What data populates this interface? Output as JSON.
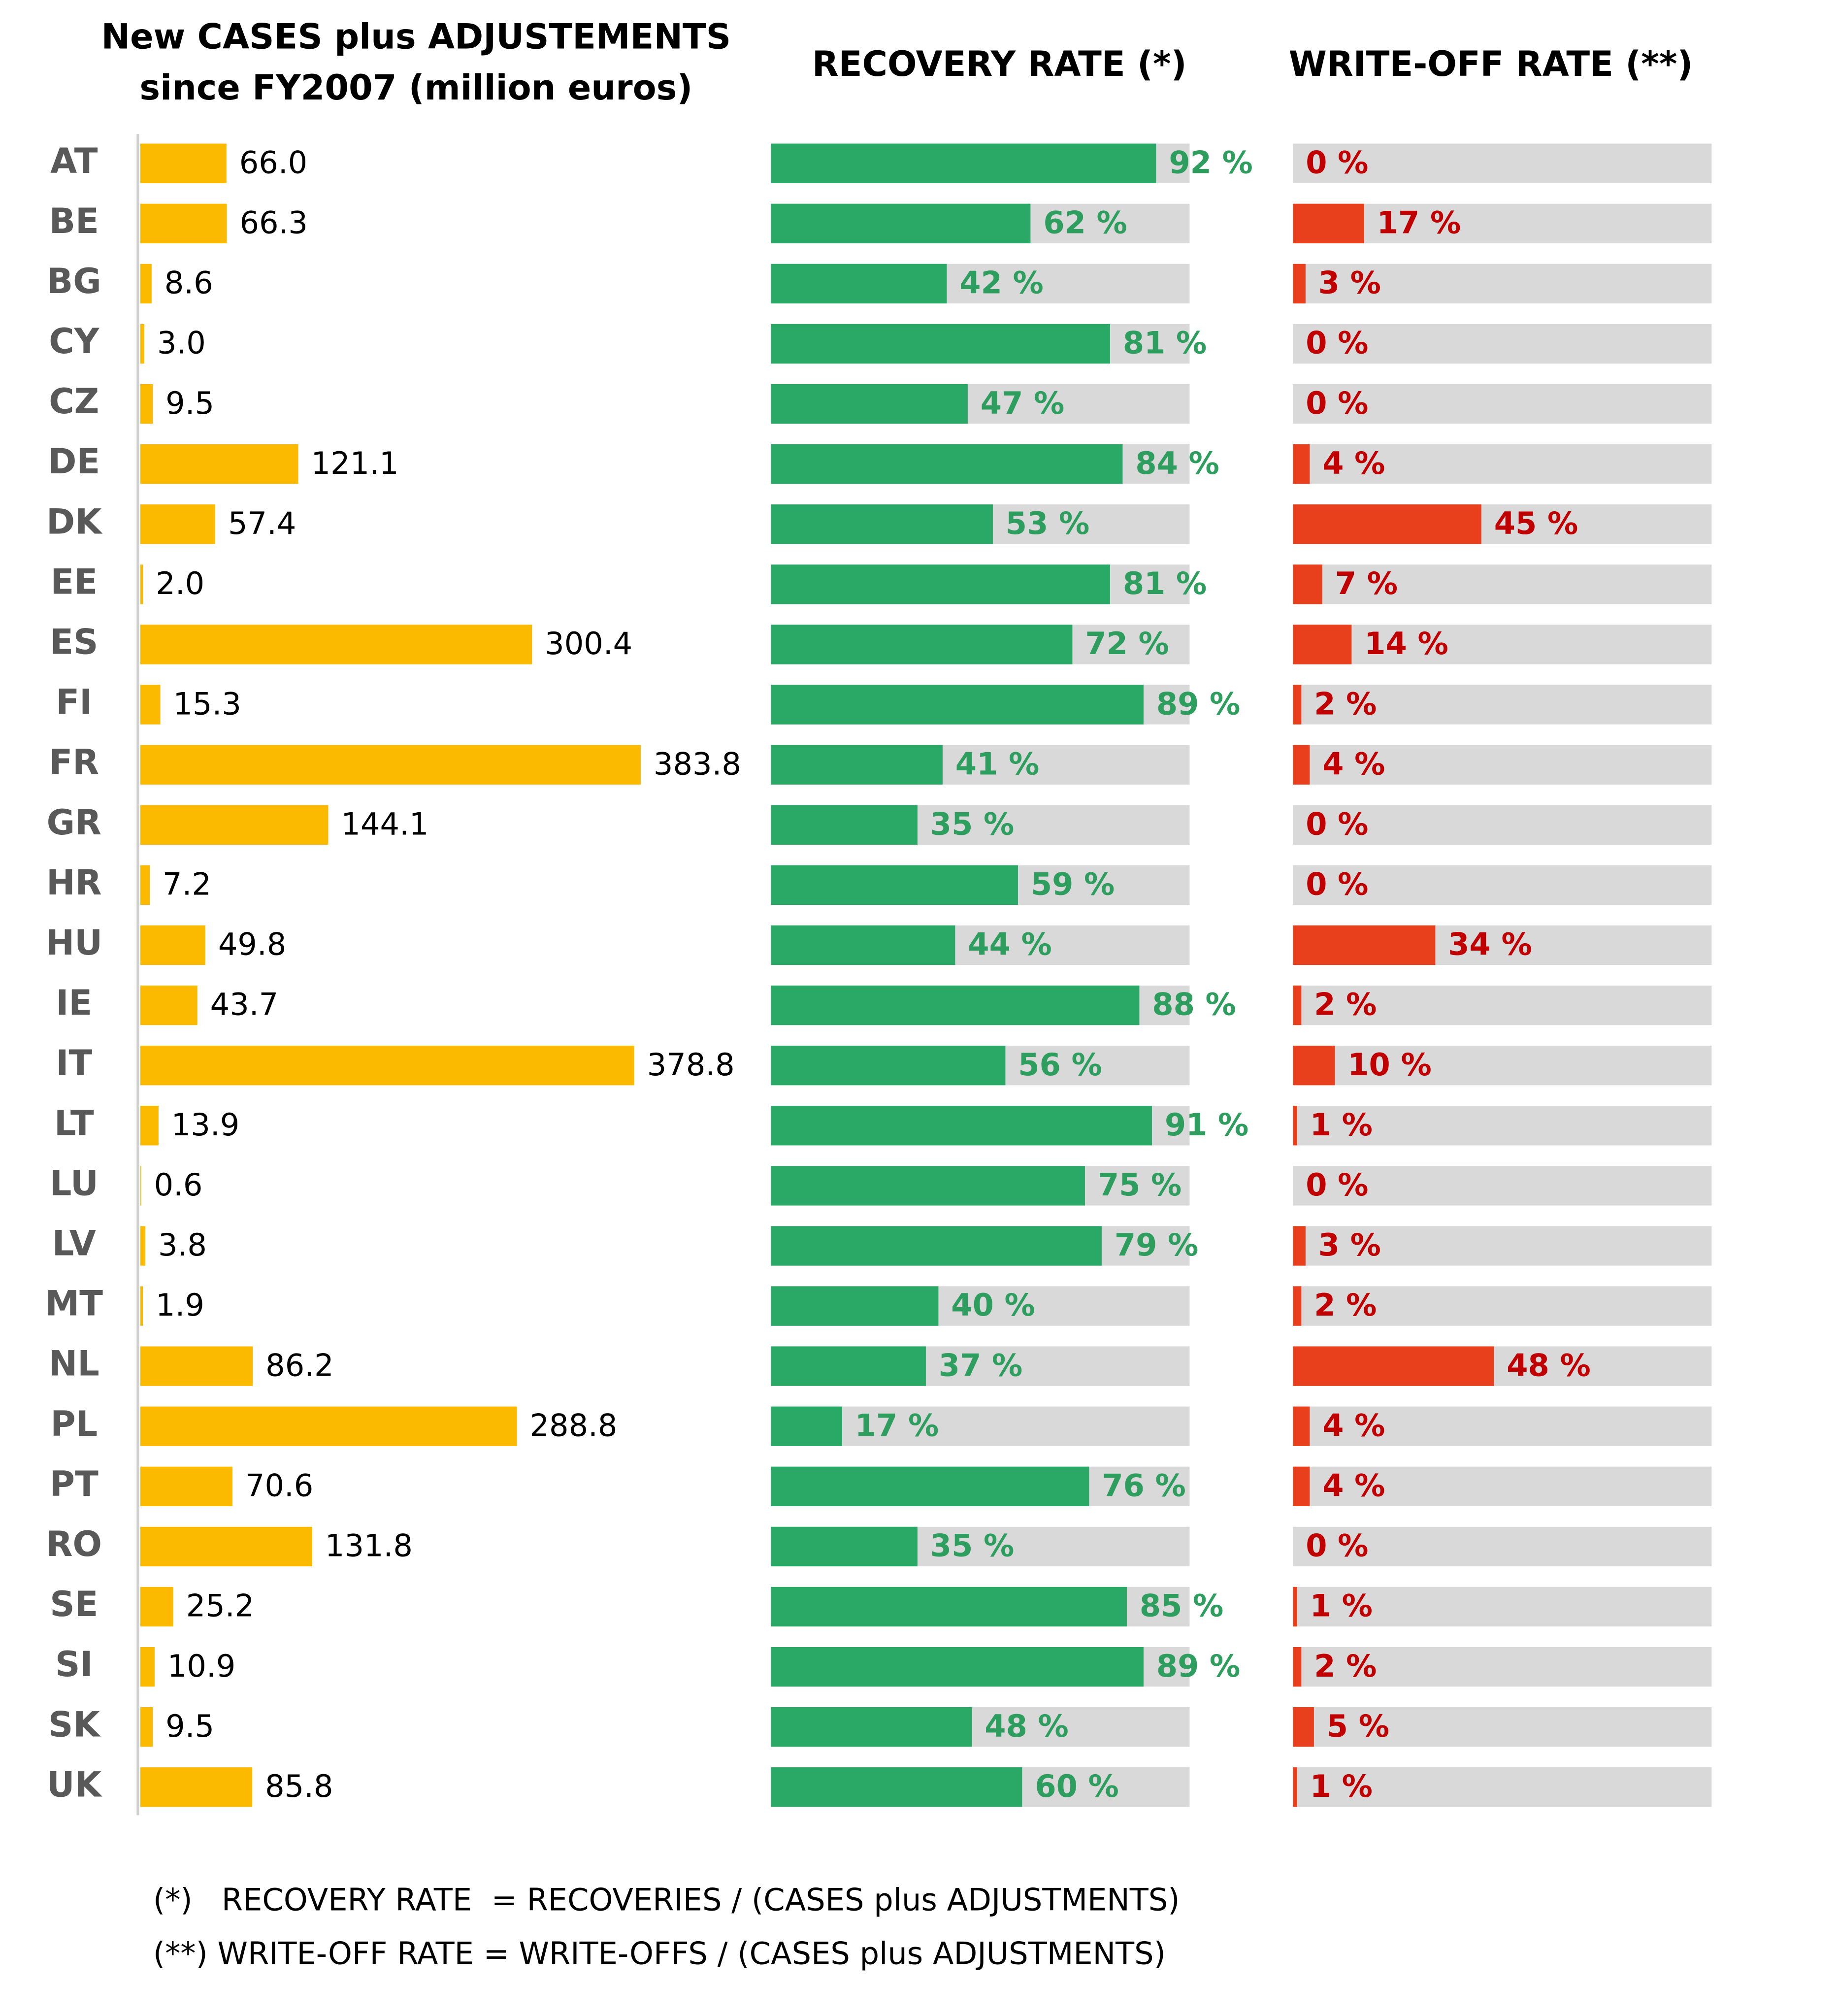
{
  "chart_data": {
    "type": "bar",
    "orientation": "horizontal",
    "categories": [
      "AT",
      "BE",
      "BG",
      "CY",
      "CZ",
      "DE",
      "DK",
      "EE",
      "ES",
      "FI",
      "FR",
      "GR",
      "HR",
      "HU",
      "IE",
      "IT",
      "LT",
      "LU",
      "LV",
      "MT",
      "NL",
      "PL",
      "PT",
      "RO",
      "SE",
      "SI",
      "SK",
      "UK"
    ],
    "series": [
      {
        "name": "New CASES plus ADJUSTEMENTS since FY2007 (million euros)",
        "color": "#fbb900",
        "xlim": [
          0,
          400
        ],
        "values": [
          66.0,
          66.3,
          8.6,
          3.0,
          9.5,
          121.1,
          57.4,
          2.0,
          300.4,
          15.3,
          383.8,
          144.1,
          7.2,
          49.8,
          43.7,
          378.8,
          13.9,
          0.6,
          3.8,
          1.9,
          86.2,
          288.8,
          70.6,
          131.8,
          25.2,
          10.9,
          9.5,
          85.8
        ],
        "value_labels": [
          "66.0",
          "66.3",
          "8.6",
          "3.0",
          "9.5",
          "121.1",
          "57.4",
          "2.0",
          "300.4",
          "15.3",
          "383.8",
          "144.1",
          "7.2",
          "49.8",
          "43.7",
          "378.8",
          "13.9",
          "0.6",
          "3.8",
          "1.9",
          "86.2",
          "288.8",
          "70.6",
          "131.8",
          "25.2",
          "10.9",
          "9.5",
          "85.8"
        ]
      },
      {
        "name": "RECOVERY RATE (*)",
        "color": "#2aa866",
        "track_color": "#d9d9d9",
        "xlim": [
          0,
          100
        ],
        "values": [
          92,
          62,
          42,
          81,
          47,
          84,
          53,
          81,
          72,
          89,
          41,
          35,
          59,
          44,
          88,
          56,
          91,
          75,
          79,
          40,
          37,
          17,
          76,
          35,
          85,
          89,
          48,
          60
        ],
        "value_labels": [
          "92 %",
          "62 %",
          "42 %",
          "81 %",
          "47 %",
          "84 %",
          "53 %",
          "81 %",
          "72 %",
          "89 %",
          "41 %",
          "35 %",
          "59 %",
          "44 %",
          "88 %",
          "56 %",
          "91 %",
          "75 %",
          "79 %",
          "40 %",
          "37 %",
          "17 %",
          "76 %",
          "35 %",
          "85 %",
          "89 %",
          "48 %",
          "60 %"
        ]
      },
      {
        "name": "WRITE-OFF RATE (**)",
        "color": "#e8401c",
        "track_color": "#d9d9d9",
        "xlim": [
          0,
          100
        ],
        "values": [
          0,
          17,
          3,
          0,
          0,
          4,
          45,
          7,
          14,
          2,
          4,
          0,
          0,
          34,
          2,
          10,
          1,
          0,
          3,
          2,
          48,
          4,
          4,
          0,
          1,
          2,
          5,
          1
        ],
        "value_labels": [
          "0 %",
          "17 %",
          "3 %",
          "0 %",
          "0 %",
          "4 %",
          "45 %",
          "7 %",
          "14 %",
          "2 %",
          "4 %",
          "0 %",
          "0 %",
          "34 %",
          "2 %",
          "10 %",
          "1 %",
          "0 %",
          "3 %",
          "2 %",
          "48 %",
          "4 %",
          "4 %",
          "0 %",
          "1 %",
          "2 %",
          "5 %",
          "1 %"
        ]
      }
    ],
    "notes": [
      "(*)   RECOVERY RATE  = RECOVERIES / (CASES plus ADJUSTMENTS)",
      "(**) WRITE-OFF RATE = WRITE-OFFS / (CASES plus ADJUSTMENTS)"
    ]
  }
}
